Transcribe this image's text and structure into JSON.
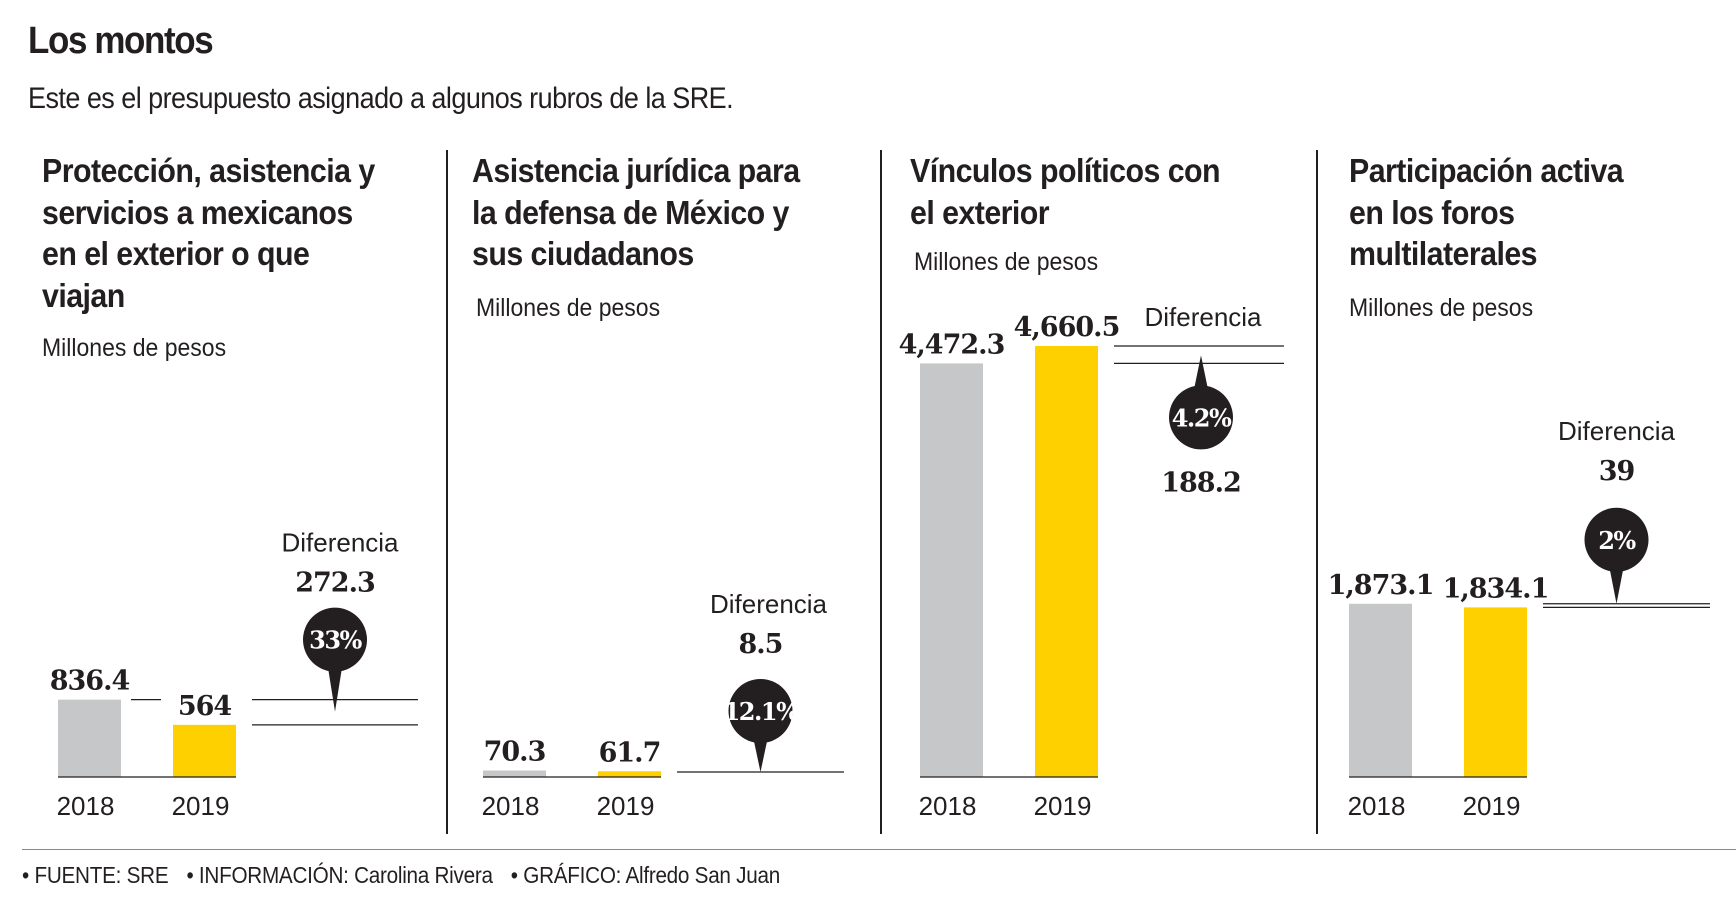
{
  "header": {
    "title": "Los montos",
    "subtitle": "Este es el presupuesto asignado a algunos rubros de la SRE."
  },
  "footer": {
    "items": [
      "• FUENTE: SRE",
      "• INFORMACIÓN: Carolina Rivera",
      "• GRÁFICO: Alfredo San Juan"
    ]
  },
  "colors": {
    "bar_2018": "#c6c7c9",
    "bar_2019": "#ffd000",
    "ink": "#231f20"
  },
  "chart_data": [
    {
      "type": "bar",
      "title": "Protección, asistencia y\nservicios a mexicanos\nen el exterior o que\nviajan",
      "unit_label": "Millones de pesos",
      "categories": [
        "2018",
        "2019"
      ],
      "values": [
        836.4,
        564
      ],
      "value_labels": [
        "836.4",
        "564"
      ],
      "difference_label": "Diferencia",
      "difference_value": "272.3",
      "difference_pct": "33%",
      "direction": "down"
    },
    {
      "type": "bar",
      "title": "Asistencia jurídica para\nla defensa de México y\nsus ciudadanos",
      "unit_label": "Millones de pesos",
      "categories": [
        "2018",
        "2019"
      ],
      "values": [
        70.3,
        61.7
      ],
      "value_labels": [
        "70.3",
        "61.7"
      ],
      "difference_label": "Diferencia",
      "difference_value": "8.5",
      "difference_pct": "12.1%",
      "direction": "down"
    },
    {
      "type": "bar",
      "title": "Vínculos políticos con\nel exterior",
      "unit_label": "Millones de pesos",
      "categories": [
        "2018",
        "2019"
      ],
      "values": [
        4472.3,
        4660.5
      ],
      "value_labels": [
        "4,472.3",
        "4,660.5"
      ],
      "difference_label": "Diferencia",
      "difference_value": "188.2",
      "difference_pct": "4.2%",
      "direction": "up"
    },
    {
      "type": "bar",
      "title": "Participación activa\nen los foros\nmultilaterales",
      "unit_label": "Millones de pesos",
      "categories": [
        "2018",
        "2019"
      ],
      "values": [
        1873.1,
        1834.1
      ],
      "value_labels": [
        "1,873.1",
        "1,834.1"
      ],
      "difference_label": "Diferencia",
      "difference_value": "39",
      "difference_pct": "2%",
      "direction": "down"
    }
  ]
}
